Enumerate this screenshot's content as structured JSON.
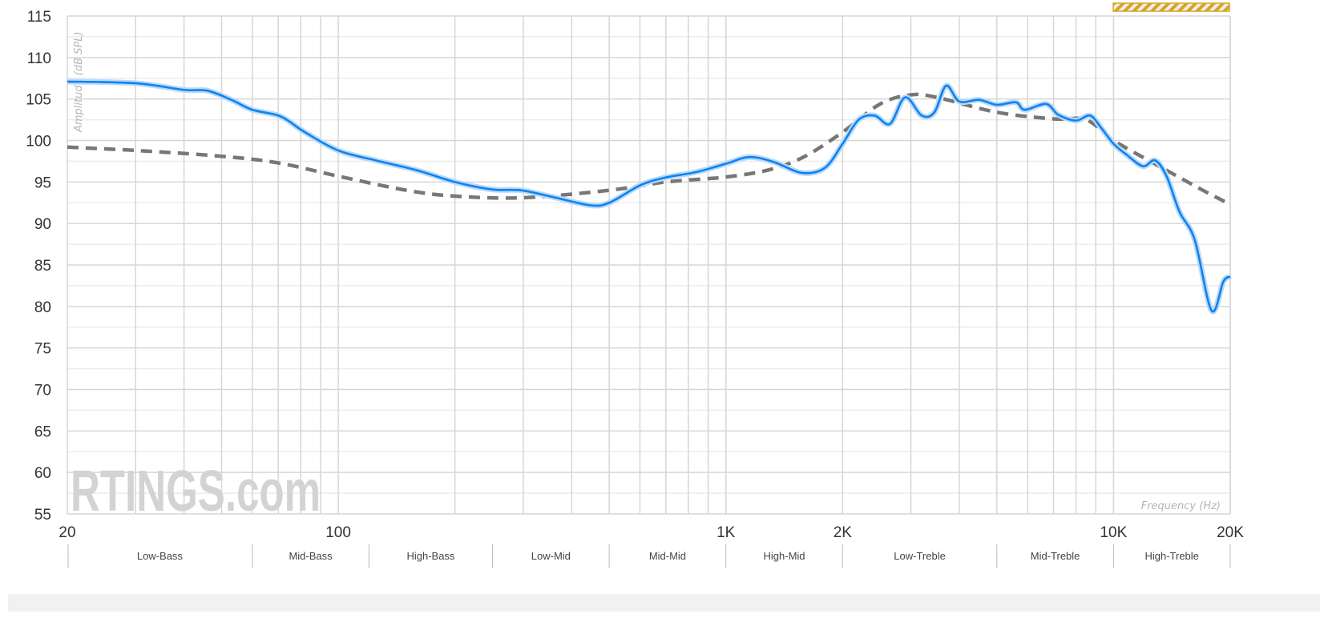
{
  "chart_data": {
    "type": "line",
    "title": "",
    "xlabel": "Frequency (Hz)",
    "ylabel": "Amplitude (dB SPL)",
    "x_scale": "log",
    "xlim": [
      20,
      20000
    ],
    "ylim": [
      55,
      115
    ],
    "grid": true,
    "y_ticks": [
      55,
      60,
      65,
      70,
      75,
      80,
      85,
      90,
      95,
      100,
      105,
      110,
      115
    ],
    "x_ticks": [
      {
        "value": 20,
        "label": "20"
      },
      {
        "value": 100,
        "label": "100"
      },
      {
        "value": 1000,
        "label": "1K"
      },
      {
        "value": 2000,
        "label": "2K"
      },
      {
        "value": 10000,
        "label": "10K"
      },
      {
        "value": 20000,
        "label": "20K"
      }
    ],
    "bands": [
      {
        "label": "Low-Bass",
        "from": 20,
        "to": 60
      },
      {
        "label": "Mid-Bass",
        "from": 60,
        "to": 120
      },
      {
        "label": "High-Bass",
        "from": 120,
        "to": 250
      },
      {
        "label": "Low-Mid",
        "from": 250,
        "to": 500
      },
      {
        "label": "Mid-Mid",
        "from": 500,
        "to": 1000
      },
      {
        "label": "High-Mid",
        "from": 1000,
        "to": 2000
      },
      {
        "label": "Low-Treble",
        "from": 2000,
        "to": 5000
      },
      {
        "label": "Mid-Treble",
        "from": 5000,
        "to": 10000
      },
      {
        "label": "High-Treble",
        "from": 10000,
        "to": 20000
      }
    ],
    "series": [
      {
        "style": "solid",
        "color": "#0a84f0",
        "x": [
          20,
          30,
          40,
          46,
          53,
          60,
          71,
          82,
          100,
          125,
          160,
          200,
          250,
          296,
          357,
          446,
          500,
          601,
          693,
          840,
          1000,
          1150,
          1330,
          1570,
          1800,
          2000,
          2200,
          2420,
          2650,
          2900,
          3200,
          3450,
          3700,
          4000,
          4500,
          5000,
          5600,
          5900,
          6700,
          7200,
          8000,
          8700,
          9300,
          10000,
          10800,
          11900,
          12800,
          13700,
          14800,
          16200,
          17900,
          19200,
          20000
        ],
        "y": [
          107.1,
          106.9,
          106.1,
          106.0,
          104.9,
          103.7,
          102.9,
          101.0,
          98.8,
          97.6,
          96.4,
          95.0,
          94.1,
          94.0,
          93.2,
          92.2,
          92.5,
          94.6,
          95.5,
          96.2,
          97.2,
          98.0,
          97.4,
          96.1,
          96.7,
          99.6,
          102.5,
          103.0,
          102.0,
          105.2,
          103.0,
          103.4,
          106.6,
          104.7,
          104.9,
          104.3,
          104.6,
          103.7,
          104.4,
          103.1,
          102.4,
          103.0,
          101.5,
          99.6,
          98.3,
          96.9,
          97.6,
          95.7,
          91.4,
          88.0,
          79.5,
          83.0,
          83.6
        ]
      },
      {
        "style": "dashed",
        "color": "#777777",
        "x": [
          20,
          30,
          50,
          70,
          100,
          150,
          200,
          300,
          500,
          700,
          1000,
          1300,
          1600,
          2000,
          2500,
          3000,
          3500,
          5000,
          7000,
          8500,
          10000,
          13000,
          17000,
          20000
        ],
        "y": [
          99.2,
          98.8,
          98.1,
          97.3,
          95.7,
          94.0,
          93.3,
          93.1,
          94.0,
          95.0,
          95.6,
          96.5,
          98.1,
          101.0,
          104.4,
          105.5,
          105.2,
          103.4,
          102.6,
          102.5,
          100.0,
          97.0,
          94.0,
          92.3
        ]
      }
    ]
  },
  "watermark": "RTINGS.com",
  "colors": {
    "accent": "#0a84f0",
    "target": "#777777",
    "stripe": "#d9a320",
    "grid": "#d6d6d6"
  }
}
